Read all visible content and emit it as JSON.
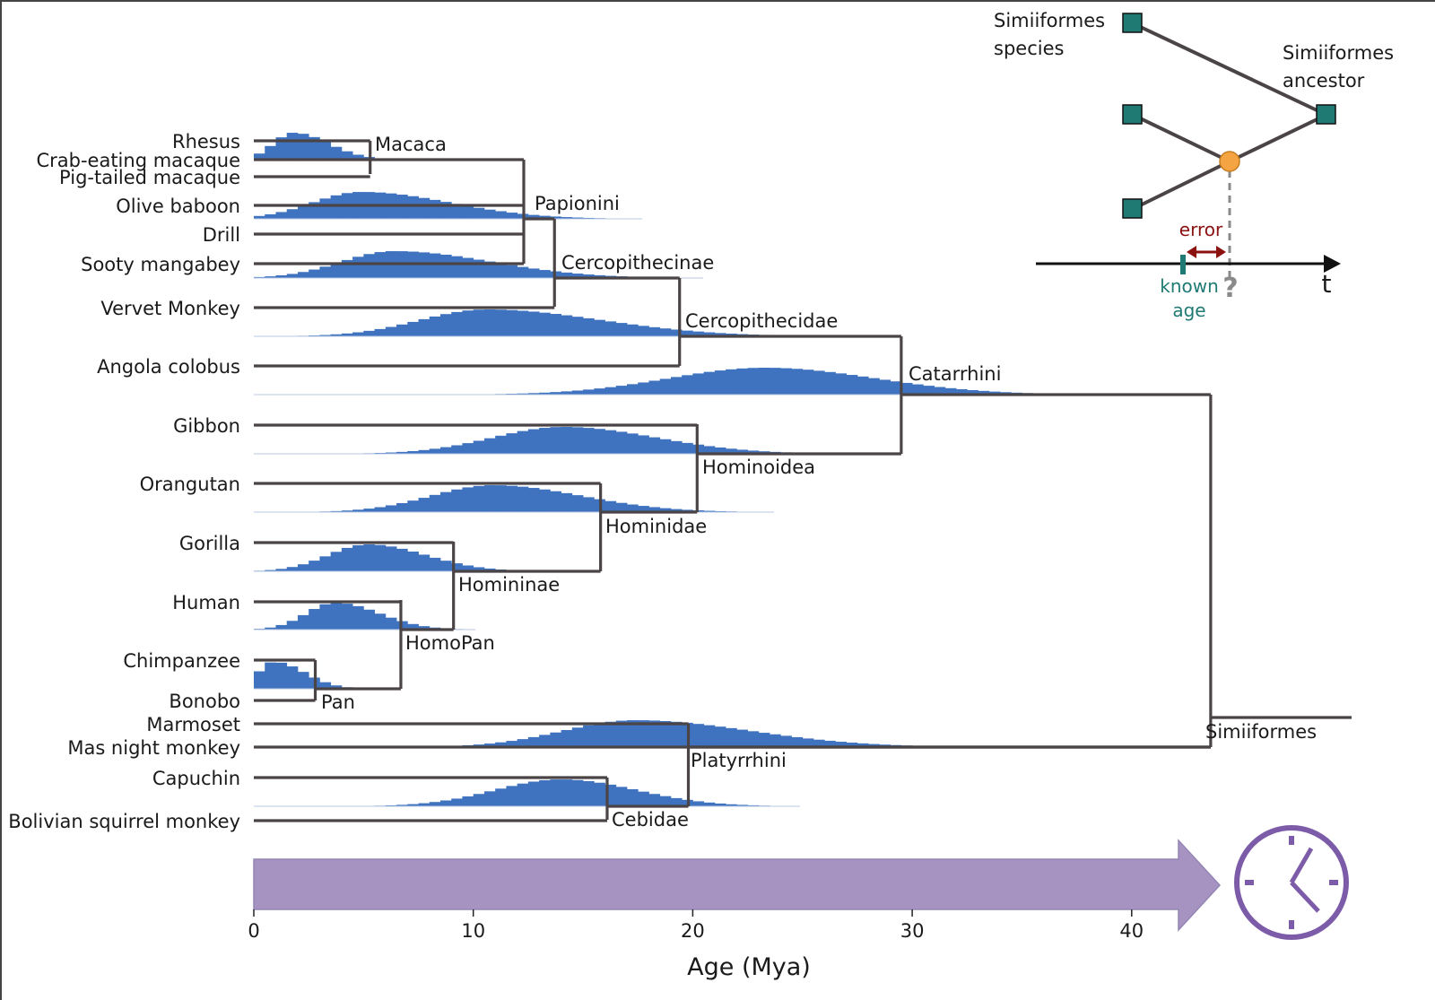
{
  "figure": {
    "xlabel": "Age (Mya)",
    "x_ticks": [
      "0",
      "10",
      "20",
      "30",
      "40"
    ]
  },
  "taxa": [
    "Rhesus",
    "Crab-eating macaque",
    "Pig-tailed macaque",
    "Olive baboon",
    "Drill",
    "Sooty mangabey",
    "Vervet Monkey",
    "Angola colobus",
    "Gibbon",
    "Orangutan",
    "Gorilla",
    "Human",
    "Chimpanzee",
    "Bonobo",
    "Marmoset",
    "Mas night monkey",
    "Capuchin",
    "Bolivian squirrel monkey"
  ],
  "clades": [
    {
      "name": "Macaca",
      "age_mya": 5.3,
      "peak_mya": 1.8
    },
    {
      "name": "Papionini",
      "age_mya": 12.3,
      "peak_mya": 4.9
    },
    {
      "name": "Cercopithecinae",
      "age_mya": 13.7,
      "peak_mya": 6.4
    },
    {
      "name": "Cercopithecidae",
      "age_mya": 19.4,
      "peak_mya": 10.6
    },
    {
      "name": "Catarrhini",
      "age_mya": 29.5,
      "peak_mya": 23.3
    },
    {
      "name": "Hominoidea",
      "age_mya": 20.2,
      "peak_mya": 14.1
    },
    {
      "name": "Hominidae",
      "age_mya": 15.8,
      "peak_mya": 10.9
    },
    {
      "name": "Homininae",
      "age_mya": 9.1,
      "peak_mya": 5.2
    },
    {
      "name": "HomoPan",
      "age_mya": 6.7,
      "peak_mya": 3.7
    },
    {
      "name": "Pan",
      "age_mya": 2.8,
      "peak_mya": 0.9
    },
    {
      "name": "Platyrrhini",
      "age_mya": 19.8,
      "peak_mya": 17.4
    },
    {
      "name": "Cebidae",
      "age_mya": 16.1,
      "peak_mya": 14.0
    },
    {
      "name": "Simiiformes",
      "age_mya": 43.6,
      "peak_mya": null
    }
  ],
  "inset": {
    "species_label": "Simiiformes species",
    "ancestor_label": "Simiiformes ancestor",
    "error_label": "error",
    "known_age_label": "known age",
    "question_mark": "?",
    "time_label": "t",
    "colors": {
      "species_node": "#1f7a73",
      "estimated_node": "#f5a443",
      "error": "#8b1010",
      "known_age": "#1f7a73"
    }
  },
  "colors": {
    "histogram": "#3f73bf",
    "tree": "#4a4446",
    "time_arrow": "#a693c2",
    "clock": "#7c5ca8"
  },
  "clock_icon": "clock-icon"
}
